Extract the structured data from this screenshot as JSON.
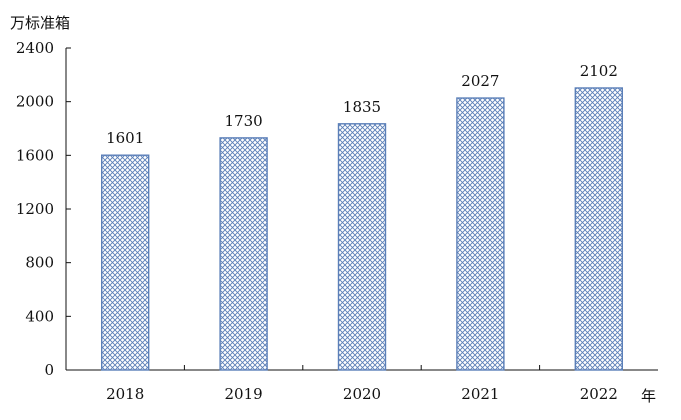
{
  "chart_data": {
    "type": "bar",
    "ylabel": "万标准箱",
    "xlabel": "年",
    "categories": [
      "2018",
      "2019",
      "2020",
      "2021",
      "2022"
    ],
    "values": [
      1601,
      1730,
      1835,
      2027,
      2102
    ],
    "data_labels": [
      "1601",
      "1730",
      "1835",
      "2027",
      "2102"
    ],
    "ylim": [
      0,
      2400
    ],
    "yticks": [
      0,
      400,
      800,
      1200,
      1600,
      2000,
      2400
    ],
    "ytick_labels": [
      "0",
      "400",
      "800",
      "1200",
      "1600",
      "2000",
      "2400"
    ],
    "grid": false,
    "legend": "none",
    "bar_fill": "crosshatch",
    "colors": {
      "bar": "#5b7fb8",
      "axis": "#111111"
    }
  }
}
